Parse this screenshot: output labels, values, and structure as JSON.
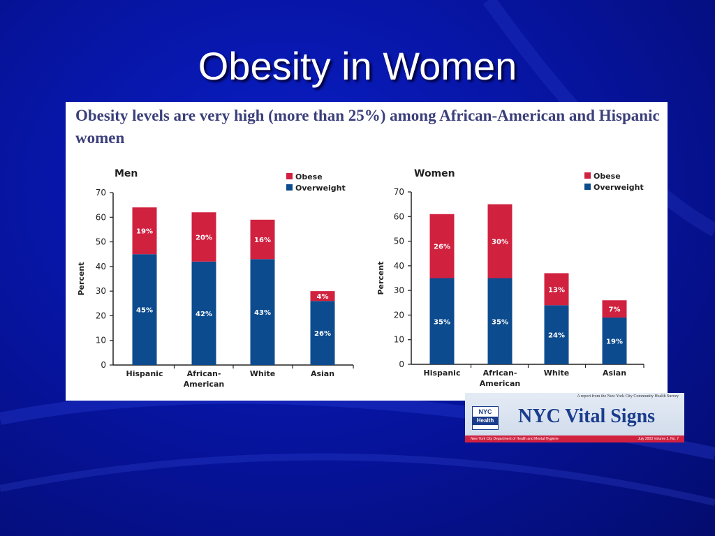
{
  "slide": {
    "title": "Obesity in Women"
  },
  "panel": {
    "headline": "Obesity levels are very high (more than 25%) among African-American and Hispanic women"
  },
  "colors": {
    "obese": "#d0213f",
    "overweight": "#0c4b8e",
    "axis": "#222222"
  },
  "banner": {
    "top_text": "A report from the New York City Community Health Survey",
    "logo_top": "NYC",
    "logo_bottom": "Health",
    "title_nyc": "NYC",
    "title_rest": "Vital Signs",
    "footer_left": "New York City Department of Health and Mental Hygiene",
    "footer_right": "July 2003    Volume 2, No. 7"
  },
  "chart_data": [
    {
      "type": "bar",
      "stacked": true,
      "title": "Men",
      "ylabel": "Percent",
      "ylim": [
        0,
        70
      ],
      "yticks": [
        0,
        10,
        20,
        30,
        40,
        50,
        60,
        70
      ],
      "categories": [
        [
          "Hispanic"
        ],
        [
          "African-",
          "American"
        ],
        [
          "White"
        ],
        [
          "Asian"
        ]
      ],
      "series": [
        {
          "name": "Overweight",
          "values": [
            45,
            42,
            43,
            26
          ],
          "labels": [
            "45%",
            "42%",
            "43%",
            "26%"
          ]
        },
        {
          "name": "Obese",
          "values": [
            19,
            20,
            16,
            4
          ],
          "labels": [
            "19%",
            "20%",
            "16%",
            "4%"
          ]
        }
      ],
      "legend": "top-right"
    },
    {
      "type": "bar",
      "stacked": true,
      "title": "Women",
      "ylabel": "Percent",
      "ylim": [
        0,
        70
      ],
      "yticks": [
        0,
        10,
        20,
        30,
        40,
        50,
        60,
        70
      ],
      "categories": [
        [
          "Hispanic"
        ],
        [
          "African-",
          "American"
        ],
        [
          "White"
        ],
        [
          "Asian"
        ]
      ],
      "series": [
        {
          "name": "Overweight",
          "values": [
            35,
            35,
            24,
            19
          ],
          "labels": [
            "35%",
            "35%",
            "24%",
            "19%"
          ]
        },
        {
          "name": "Obese",
          "values": [
            26,
            30,
            13,
            7
          ],
          "labels": [
            "26%",
            "30%",
            "13%",
            "7%"
          ]
        }
      ],
      "legend": "top-right"
    }
  ]
}
